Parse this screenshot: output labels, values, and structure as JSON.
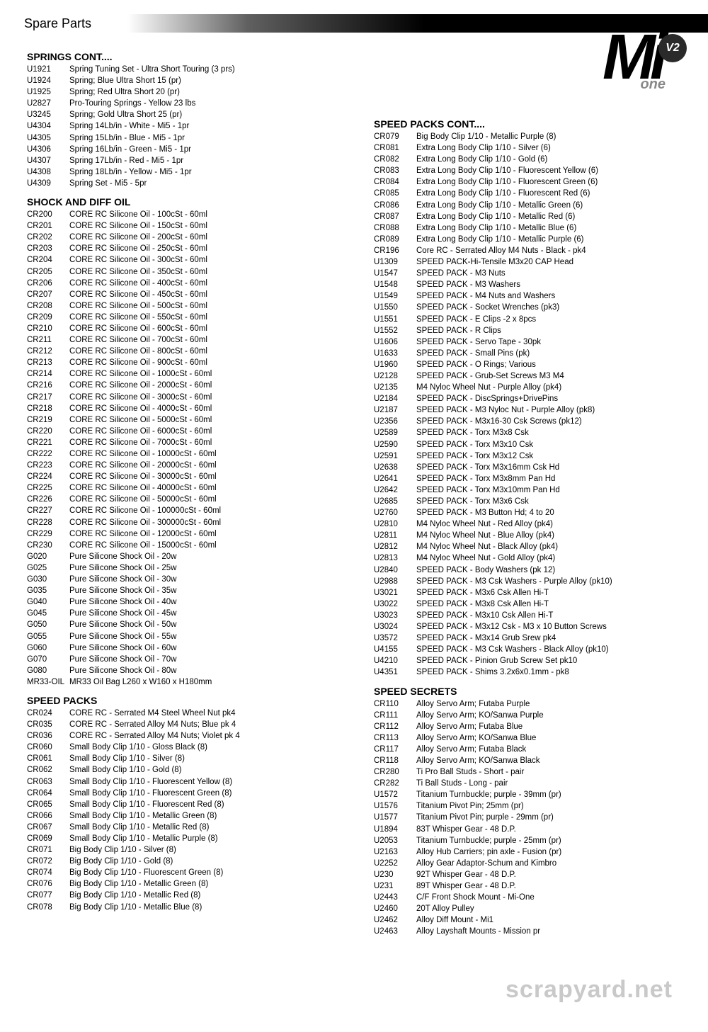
{
  "header": {
    "title": "Spare Parts"
  },
  "logo": {
    "main": "Mi",
    "badge": "V2",
    "sub": "one"
  },
  "watermark": "scrapyard.net",
  "left": [
    {
      "title": "SPRINGS CONT....",
      "items": [
        {
          "code": "U1921",
          "desc": "Spring Tuning Set - Ultra Short Touring (3 prs)"
        },
        {
          "code": "U1924",
          "desc": "Spring; Blue Ultra Short 15 (pr)"
        },
        {
          "code": "U1925",
          "desc": "Spring; Red Ultra Short 20 (pr)"
        },
        {
          "code": "U2827",
          "desc": "Pro-Touring Springs -  Yellow 23 lbs"
        },
        {
          "code": "U3245",
          "desc": "Spring; Gold Ultra Short 25 (pr)"
        },
        {
          "code": "U4304",
          "desc": "Spring 14Lb/in - White - Mi5 - 1pr"
        },
        {
          "code": "U4305",
          "desc": "Spring 15Lb/in - Blue - Mi5 - 1pr"
        },
        {
          "code": "U4306",
          "desc": "Spring 16Lb/in - Green - Mi5 - 1pr"
        },
        {
          "code": "U4307",
          "desc": "Spring 17Lb/in - Red - Mi5 - 1pr"
        },
        {
          "code": "U4308",
          "desc": "Spring 18Lb/in - Yellow - Mi5 - 1pr"
        },
        {
          "code": "U4309",
          "desc": "Spring Set - Mi5 - 5pr"
        }
      ]
    },
    {
      "title": "SHOCK AND DIFF OIL",
      "items": [
        {
          "code": "CR200",
          "desc": "CORE RC Silicone Oil - 100cSt - 60ml"
        },
        {
          "code": "CR201",
          "desc": "CORE RC Silicone Oil - 150cSt - 60ml"
        },
        {
          "code": "CR202",
          "desc": "CORE RC Silicone Oil - 200cSt - 60ml"
        },
        {
          "code": "CR203",
          "desc": "CORE RC Silicone Oil - 250cSt - 60ml"
        },
        {
          "code": "CR204",
          "desc": "CORE RC Silicone Oil - 300cSt - 60ml"
        },
        {
          "code": "CR205",
          "desc": "CORE RC Silicone Oil - 350cSt - 60ml"
        },
        {
          "code": "CR206",
          "desc": "CORE RC Silicone Oil - 400cSt - 60ml"
        },
        {
          "code": "CR207",
          "desc": "CORE RC Silicone Oil - 450cSt - 60ml"
        },
        {
          "code": "CR208",
          "desc": "CORE RC Silicone Oil - 500cSt - 60ml"
        },
        {
          "code": "CR209",
          "desc": "CORE RC Silicone Oil - 550cSt - 60ml"
        },
        {
          "code": "CR210",
          "desc": "CORE RC Silicone Oil - 600cSt - 60ml"
        },
        {
          "code": "CR211",
          "desc": "CORE RC Silicone Oil - 700cSt - 60ml"
        },
        {
          "code": "CR212",
          "desc": "CORE RC Silicone Oil - 800cSt - 60ml"
        },
        {
          "code": "CR213",
          "desc": "CORE RC Silicone Oil - 900cSt - 60ml"
        },
        {
          "code": "CR214",
          "desc": "CORE RC Silicone Oil - 1000cSt - 60ml"
        },
        {
          "code": "CR216",
          "desc": "CORE RC Silicone Oil - 2000cSt - 60ml"
        },
        {
          "code": "CR217",
          "desc": "CORE RC Silicone Oil - 3000cSt - 60ml"
        },
        {
          "code": "CR218",
          "desc": "CORE RC Silicone Oil - 4000cSt - 60ml"
        },
        {
          "code": "CR219",
          "desc": "CORE RC Silicone Oil - 5000cSt - 60ml"
        },
        {
          "code": "CR220",
          "desc": "CORE RC Silicone Oil - 6000cSt - 60ml"
        },
        {
          "code": "CR221",
          "desc": "CORE RC Silicone Oil - 7000cSt - 60ml"
        },
        {
          "code": "CR222",
          "desc": "CORE RC Silicone Oil - 10000cSt - 60ml"
        },
        {
          "code": "CR223",
          "desc": "CORE RC Silicone Oil - 20000cSt - 60ml"
        },
        {
          "code": "CR224",
          "desc": "CORE RC Silicone Oil - 30000cSt - 60ml"
        },
        {
          "code": "CR225",
          "desc": "CORE RC Silicone Oil - 40000cSt - 60ml"
        },
        {
          "code": "CR226",
          "desc": "CORE RC Silicone Oil - 50000cSt - 60ml"
        },
        {
          "code": "CR227",
          "desc": "CORE RC Silicone Oil - 100000cSt - 60ml"
        },
        {
          "code": "CR228",
          "desc": "CORE RC Silicone Oil - 300000cSt - 60ml"
        },
        {
          "code": "CR229",
          "desc": "CORE RC Silicone Oil - 12000cSt - 60ml"
        },
        {
          "code": "CR230",
          "desc": "CORE RC Silicone Oil - 15000cSt - 60ml"
        },
        {
          "code": "G020",
          "desc": "Pure Silicone Shock Oil - 20w"
        },
        {
          "code": "G025",
          "desc": "Pure Silicone Shock Oil - 25w"
        },
        {
          "code": "G030",
          "desc": "Pure Silicone Shock Oil - 30w"
        },
        {
          "code": "G035",
          "desc": "Pure Silicone Shock Oil - 35w"
        },
        {
          "code": "G040",
          "desc": "Pure Silicone Shock Oil - 40w"
        },
        {
          "code": "G045",
          "desc": "Pure Silicone Shock Oil - 45w"
        },
        {
          "code": "G050",
          "desc": "Pure Silicone Shock Oil - 50w"
        },
        {
          "code": "G055",
          "desc": "Pure Silicone Shock Oil - 55w"
        },
        {
          "code": "G060",
          "desc": "Pure Silicone Shock Oil - 60w"
        },
        {
          "code": "G070",
          "desc": "Pure Silicone Shock Oil - 70w"
        },
        {
          "code": "G080",
          "desc": "Pure Silicone Shock Oil - 80w"
        },
        {
          "code": "MR33-OIL",
          "desc": "MR33 Oil Bag L260 x W160 x H180mm"
        }
      ]
    },
    {
      "title": "SPEED PACKS",
      "items": [
        {
          "code": "CR024",
          "desc": "CORE RC - Serrated M4 Steel Wheel Nut pk4"
        },
        {
          "code": "CR035",
          "desc": "CORE RC - Serrated Alloy M4 Nuts; Blue  pk 4"
        },
        {
          "code": "CR036",
          "desc": "CORE RC - Serrated Alloy M4 Nuts; Violet  pk 4"
        },
        {
          "code": "CR060",
          "desc": "Small Body Clip 1/10 - Gloss Black (8)"
        },
        {
          "code": "CR061",
          "desc": "Small Body Clip 1/10 - Silver (8)"
        },
        {
          "code": "CR062",
          "desc": "Small Body Clip 1/10 - Gold (8)"
        },
        {
          "code": "CR063",
          "desc": "Small Body Clip 1/10 - Fluorescent Yellow (8)"
        },
        {
          "code": "CR064",
          "desc": "Small Body Clip 1/10 - Fluorescent Green (8)"
        },
        {
          "code": "CR065",
          "desc": "Small Body Clip 1/10 - Fluorescent Red (8)"
        },
        {
          "code": "CR066",
          "desc": "Small Body Clip 1/10 - Metallic Green (8)"
        },
        {
          "code": "CR067",
          "desc": "Small Body Clip 1/10 - Metallic Red (8)"
        },
        {
          "code": "CR069",
          "desc": "Small Body Clip 1/10 - Metallic Purple (8)"
        },
        {
          "code": "CR071",
          "desc": "Big Body Clip 1/10 - Silver (8)"
        },
        {
          "code": "CR072",
          "desc": "Big Body Clip 1/10 - Gold (8)"
        },
        {
          "code": "CR074",
          "desc": "Big Body Clip 1/10 - Fluorescent Green (8)"
        },
        {
          "code": "CR076",
          "desc": "Big Body Clip 1/10 - Metallic Green (8)"
        },
        {
          "code": "CR077",
          "desc": "Big Body Clip 1/10 - Metallic Red (8)"
        },
        {
          "code": "CR078",
          "desc": "Big Body Clip 1/10 - Metallic Blue (8)"
        }
      ]
    }
  ],
  "right": [
    {
      "title": "SPEED PACKS CONT....",
      "items": [
        {
          "code": "CR079",
          "desc": "Big Body Clip 1/10 - Metallic Purple (8)"
        },
        {
          "code": "CR081",
          "desc": "Extra Long Body Clip 1/10 - Silver (6)"
        },
        {
          "code": "CR082",
          "desc": "Extra Long Body Clip 1/10 - Gold (6)"
        },
        {
          "code": "CR083",
          "desc": "Extra Long Body Clip 1/10 - Fluorescent Yellow (6)"
        },
        {
          "code": "CR084",
          "desc": "Extra Long Body Clip 1/10 - Fluorescent Green (6)"
        },
        {
          "code": "CR085",
          "desc": "Extra Long Body Clip 1/10 - Fluorescent Red (6)"
        },
        {
          "code": "CR086",
          "desc": "Extra Long Body Clip 1/10 - Metallic Green (6)"
        },
        {
          "code": "CR087",
          "desc": "Extra Long Body Clip 1/10 - Metallic Red (6)"
        },
        {
          "code": "CR088",
          "desc": "Extra Long Body Clip 1/10 - Metallic Blue (6)"
        },
        {
          "code": "CR089",
          "desc": "Extra Long Body Clip 1/10 - Metallic Purple (6)"
        },
        {
          "code": "CR196",
          "desc": "Core RC - Serrated Alloy M4 Nuts - Black - pk4"
        },
        {
          "code": "U1309",
          "desc": "SPEED PACK-Hi-Tensile M3x20 CAP Head"
        },
        {
          "code": "U1547",
          "desc": "SPEED PACK - M3 Nuts"
        },
        {
          "code": "U1548",
          "desc": "SPEED PACK - M3 Washers"
        },
        {
          "code": "U1549",
          "desc": "SPEED PACK - M4 Nuts and Washers"
        },
        {
          "code": "U1550",
          "desc": "SPEED PACK - Socket Wrenches (pk3)"
        },
        {
          "code": "U1551",
          "desc": "SPEED PACK - E Clips -2 x 8pcs"
        },
        {
          "code": "U1552",
          "desc": "SPEED PACK - R Clips"
        },
        {
          "code": "U1606",
          "desc": "SPEED PACK - Servo Tape - 30pk"
        },
        {
          "code": "U1633",
          "desc": "SPEED PACK - Small Pins (pk)"
        },
        {
          "code": "U1960",
          "desc": "SPEED PACK - O Rings; Various"
        },
        {
          "code": "U2128",
          "desc": "SPEED PACK - Grub-Set Screws M3 M4"
        },
        {
          "code": "U2135",
          "desc": "M4 Nyloc Wheel Nut - Purple Alloy (pk4)"
        },
        {
          "code": "U2184",
          "desc": "SPEED PACK - DiscSprings+DrivePins"
        },
        {
          "code": "U2187",
          "desc": "SPEED PACK - M3 Nyloc Nut - Purple Alloy (pk8)"
        },
        {
          "code": "U2356",
          "desc": "SPEED PACK - M3x16-30 Csk Screws  (pk12)"
        },
        {
          "code": "U2589",
          "desc": "SPEED PACK - Torx M3x8 Csk"
        },
        {
          "code": "U2590",
          "desc": "SPEED PACK - Torx M3x10 Csk"
        },
        {
          "code": "U2591",
          "desc": "SPEED PACK - Torx M3x12 Csk"
        },
        {
          "code": "U2638",
          "desc": "SPEED PACK - Torx M3x16mm Csk Hd"
        },
        {
          "code": "U2641",
          "desc": "SPEED PACK - Torx M3x8mm Pan Hd"
        },
        {
          "code": "U2642",
          "desc": "SPEED PACK - Torx M3x10mm Pan Hd"
        },
        {
          "code": "U2685",
          "desc": "SPEED PACK - Torx M3x6 Csk"
        },
        {
          "code": "U2760",
          "desc": "SPEED PACK - M3 Button Hd; 4 to 20"
        },
        {
          "code": "U2810",
          "desc": "M4 Nyloc Wheel Nut - Red Alloy (pk4)"
        },
        {
          "code": "U2811",
          "desc": "M4 Nyloc Wheel Nut - Blue Alloy (pk4)"
        },
        {
          "code": "U2812",
          "desc": "M4 Nyloc Wheel Nut - Black Alloy (pk4)"
        },
        {
          "code": "U2813",
          "desc": "M4 Nyloc Wheel Nut - Gold Alloy (pk4)"
        },
        {
          "code": "U2840",
          "desc": "SPEED PACK - Body Washers (pk 12)"
        },
        {
          "code": "U2988",
          "desc": "SPEED PACK - M3 Csk Washers - Purple Alloy (pk10)"
        },
        {
          "code": "U3021",
          "desc": "SPEED PACK - M3x6 Csk Allen Hi-T"
        },
        {
          "code": "U3022",
          "desc": "SPEED PACK - M3x8 Csk Allen Hi-T"
        },
        {
          "code": "U3023",
          "desc": "SPEED PACK - M3x10 Csk Allen Hi-T"
        },
        {
          "code": "U3024",
          "desc": "SPEED PACK - M3x12 Csk - M3 x 10 Button Screws"
        },
        {
          "code": "U3572",
          "desc": "SPEED PACK - M3x14 Grub Srew   pk4"
        },
        {
          "code": "U4155",
          "desc": "SPEED PACK - M3 Csk Washers - Black Alloy (pk10)"
        },
        {
          "code": "U4210",
          "desc": "SPEED PACK - Pinion Grub Screw Set pk10"
        },
        {
          "code": "U4351",
          "desc": "SPEED PACK - Shims 3.2x6x0.1mm - pk8"
        }
      ]
    },
    {
      "title": "SPEED SECRETS",
      "items": [
        {
          "code": "CR110",
          "desc": "Alloy Servo Arm; Futaba Purple"
        },
        {
          "code": "CR111",
          "desc": "Alloy Servo Arm; KO/Sanwa Purple"
        },
        {
          "code": "CR112",
          "desc": "Alloy Servo Arm; Futaba Blue"
        },
        {
          "code": "CR113",
          "desc": "Alloy Servo Arm; KO/Sanwa Blue"
        },
        {
          "code": "CR117",
          "desc": "Alloy Servo Arm; Futaba Black"
        },
        {
          "code": "CR118",
          "desc": "Alloy Servo Arm; KO/Sanwa Black"
        },
        {
          "code": "CR280",
          "desc": "Ti Pro Ball Studs - Short - pair"
        },
        {
          "code": "CR282",
          "desc": "Ti Ball Studs - Long - pair"
        },
        {
          "code": "U1572",
          "desc": "Titanium Turnbuckle; purple - 39mm (pr)"
        },
        {
          "code": "U1576",
          "desc": "Titanium Pivot Pin; 25mm (pr)"
        },
        {
          "code": "U1577",
          "desc": "Titanium Pivot Pin; purple - 29mm (pr)"
        },
        {
          "code": "U1894",
          "desc": "83T Whisper Gear - 48 D.P."
        },
        {
          "code": "U2053",
          "desc": "Titanium Turnbuckle; purple - 25mm (pr)"
        },
        {
          "code": "U2163",
          "desc": "Alloy Hub Carriers; pin axle - Fusion (pr)"
        },
        {
          "code": "U2252",
          "desc": "Alloy Gear Adaptor-Schum and Kimbro"
        },
        {
          "code": "U230",
          "desc": "92T Whisper Gear - 48 D.P."
        },
        {
          "code": "U231",
          "desc": "89T Whisper Gear - 48 D.P."
        },
        {
          "code": "U2443",
          "desc": "C/F Front Shock Mount - Mi-One"
        },
        {
          "code": "U2460",
          "desc": "20T Alloy Pulley"
        },
        {
          "code": "U2462",
          "desc": "Alloy Diff Mount - Mi1"
        },
        {
          "code": "U2463",
          "desc": "Alloy Layshaft Mounts - Mission  pr"
        }
      ]
    }
  ]
}
